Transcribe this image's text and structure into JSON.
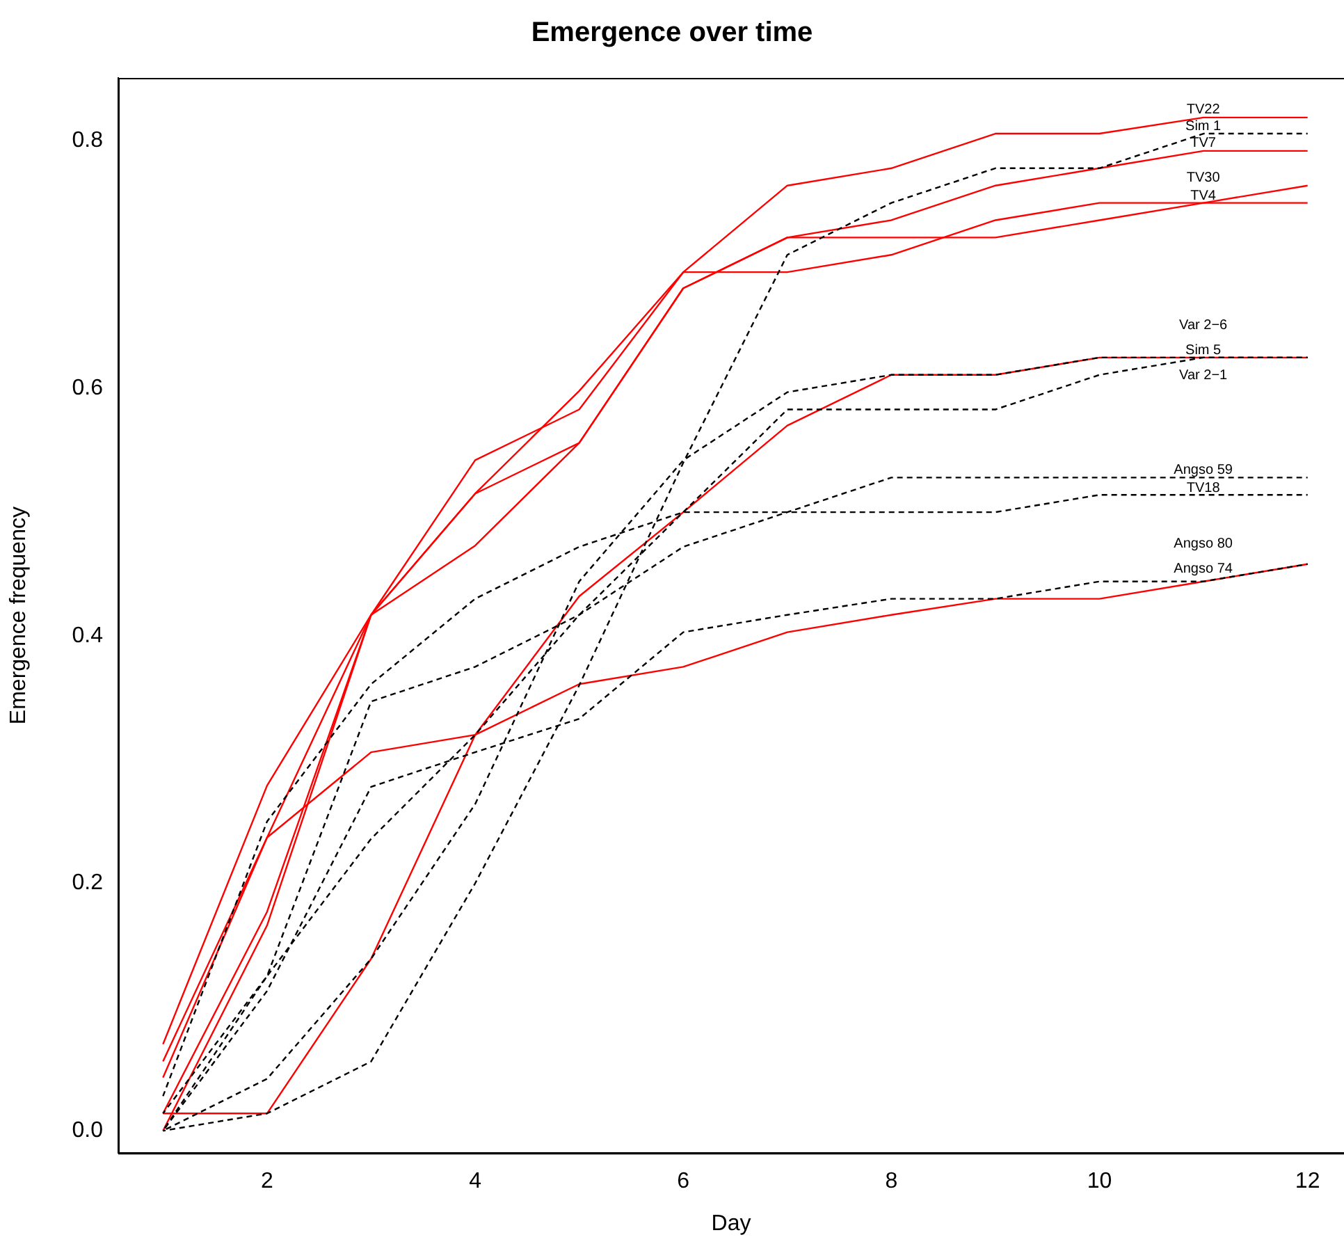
{
  "chart_data": {
    "type": "line",
    "title": "Emergence over time",
    "xlabel": "Day",
    "ylabel": "Emergence frequency",
    "x": [
      1,
      2,
      3,
      4,
      5,
      6,
      7,
      8,
      9,
      10,
      11,
      12
    ],
    "xlim": [
      0.57,
      12.35
    ],
    "xticks": [
      2,
      4,
      6,
      8,
      10,
      12
    ],
    "ylim": [
      -0.018,
      0.851
    ],
    "yticks": [
      {
        "value": 0,
        "label": "0.0"
      },
      {
        "value": 0.2,
        "label": "0.2"
      },
      {
        "value": 0.4,
        "label": "0.4"
      },
      {
        "value": 0.6,
        "label": "0.6"
      },
      {
        "value": 0.8,
        "label": "0.8"
      }
    ],
    "grid": false,
    "legend": false,
    "marker": "none",
    "series": [
      {
        "name": "TV22",
        "color": "#ff0000",
        "line_style": "solid",
        "values": [
          0.07,
          0.279,
          0.417,
          0.515,
          0.598,
          0.694,
          0.764,
          0.778,
          0.806,
          0.806,
          0.819,
          0.819
        ]
      },
      {
        "name": "Sim 1",
        "color": "#000000",
        "line_style": "dashed",
        "values": [
          0,
          0.014,
          0.056,
          0.2,
          0.36,
          0.54,
          0.708,
          0.75,
          0.778,
          0.778,
          0.806,
          0.806
        ]
      },
      {
        "name": "TV7",
        "color": "#ff0000",
        "line_style": "solid",
        "values": [
          0.014,
          0.177,
          0.417,
          0.515,
          0.556,
          0.681,
          0.722,
          0.736,
          0.764,
          0.778,
          0.792,
          0.792
        ]
      },
      {
        "name": "TV30",
        "color": "#ff0000",
        "line_style": "solid",
        "values": [
          0.043,
          0.237,
          0.417,
          0.473,
          0.556,
          0.681,
          0.722,
          0.722,
          0.722,
          0.736,
          0.75,
          0.764
        ]
      },
      {
        "name": "TV4",
        "color": "#ff0000",
        "line_style": "solid",
        "values": [
          0,
          0.166,
          0.417,
          0.542,
          0.583,
          0.694,
          0.694,
          0.708,
          0.736,
          0.75,
          0.75,
          0.75
        ]
      },
      {
        "name": "Var 2−6",
        "color": "#ff0000",
        "line_style": "solid",
        "values": [
          0.014,
          0.014,
          0.139,
          0.32,
          0.432,
          0.5,
          0.57,
          0.611,
          0.611,
          0.625,
          0.625,
          0.625
        ]
      },
      {
        "name": "Sim 5",
        "color": "#000000",
        "line_style": "dashed",
        "values": [
          0,
          0.042,
          0.139,
          0.264,
          0.444,
          0.542,
          0.597,
          0.611,
          0.611,
          0.625,
          0.625,
          0.625
        ]
      },
      {
        "name": "Var 2−1",
        "color": "#000000",
        "line_style": "dashed",
        "values": [
          0.014,
          0.125,
          0.236,
          0.32,
          0.417,
          0.5,
          0.583,
          0.583,
          0.583,
          0.611,
          0.625,
          0.625
        ]
      },
      {
        "name": "Angso 59",
        "color": "#000000",
        "line_style": "dashed",
        "values": [
          0,
          0.125,
          0.347,
          0.375,
          0.417,
          0.472,
          0.5,
          0.528,
          0.528,
          0.528,
          0.528,
          0.528
        ]
      },
      {
        "name": "TV18",
        "color": "#000000",
        "line_style": "dashed",
        "values": [
          0.028,
          0.25,
          0.361,
          0.43,
          0.472,
          0.5,
          0.5,
          0.5,
          0.5,
          0.514,
          0.514,
          0.514
        ]
      },
      {
        "name": "Angso 80",
        "color": "#000000",
        "line_style": "dashed",
        "values": [
          0,
          0.113,
          0.278,
          0.306,
          0.333,
          0.403,
          0.417,
          0.43,
          0.43,
          0.444,
          0.444,
          0.458
        ]
      },
      {
        "name": "Angso 74",
        "color": "#ff0000",
        "line_style": "solid",
        "values": [
          0.056,
          0.237,
          0.306,
          0.32,
          0.361,
          0.375,
          0.403,
          0.417,
          0.43,
          0.43,
          0.444,
          0.458
        ]
      }
    ]
  }
}
